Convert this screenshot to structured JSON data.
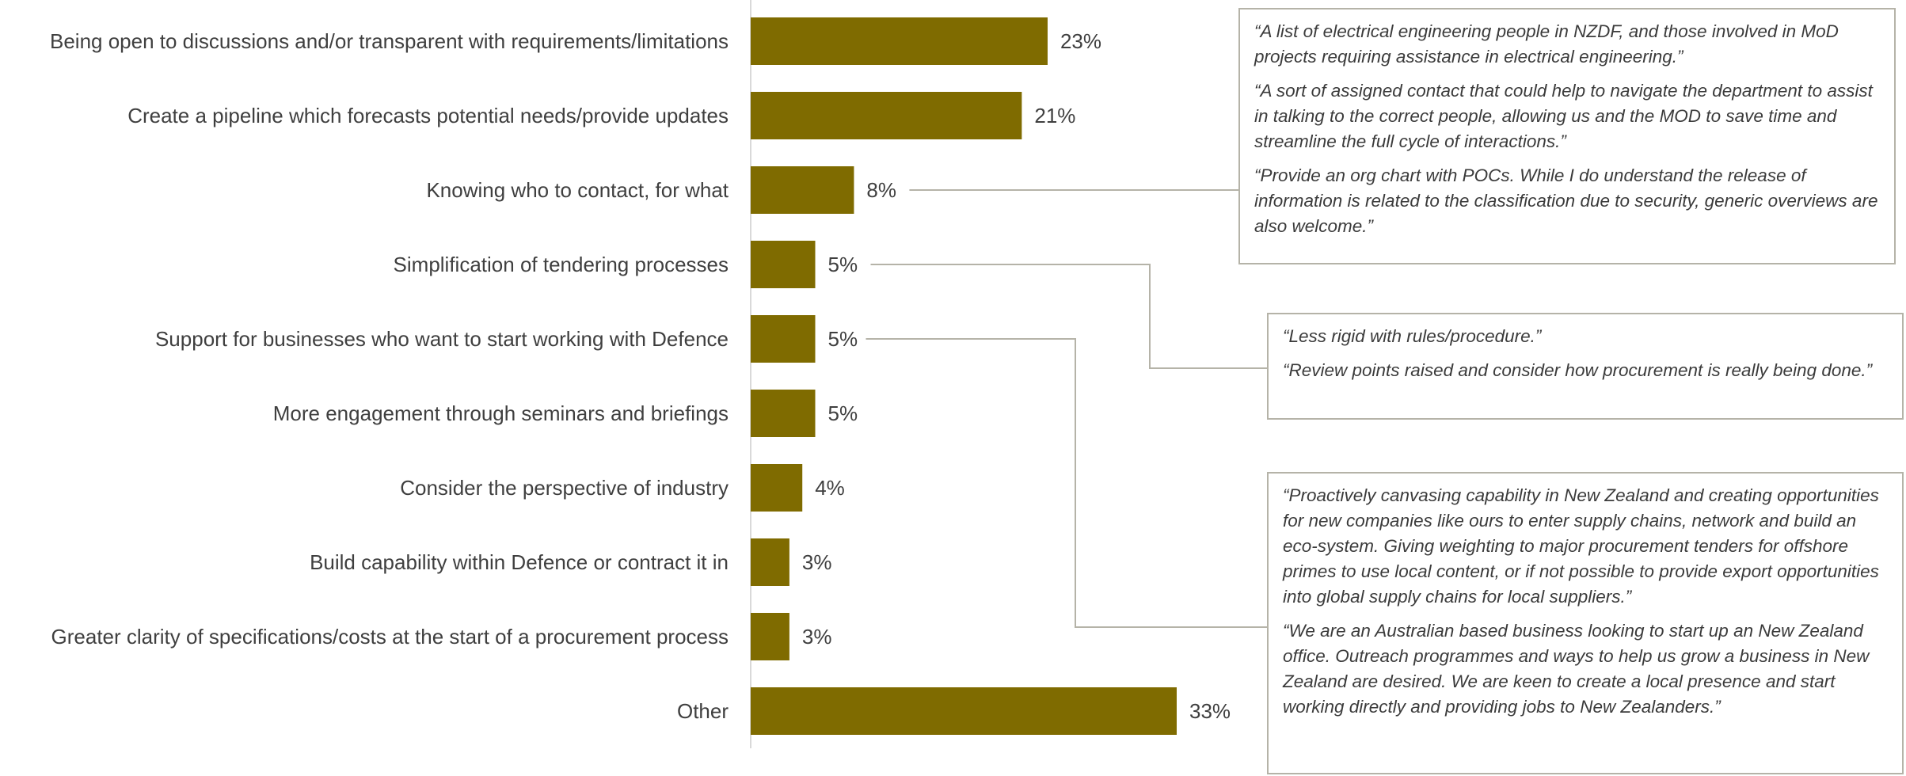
{
  "chart_data": {
    "type": "bar",
    "orientation": "horizontal",
    "categories": [
      "Being open to discussions and/or transparent with requirements/limitations",
      "Create a pipeline which forecasts potential needs/provide updates",
      "Knowing who to contact, for what",
      "Simplification of tendering processes",
      "Support for businesses who want to start working with Defence",
      "More engagement through seminars and briefings",
      "Consider the perspective of industry",
      "Build capability within Defence or contract it in",
      "Greater clarity of specifications/costs at the start of a procurement process",
      "Other"
    ],
    "values": [
      23,
      21,
      8,
      5,
      5,
      5,
      4,
      3,
      3,
      33
    ],
    "value_labels": [
      "23%",
      "21%",
      "8%",
      "5%",
      "5%",
      "5%",
      "4%",
      "3%",
      "3%",
      "33%"
    ],
    "bar_color": "#7f6b00",
    "axis_color": "#d9d9d9",
    "xlim": [
      0,
      33
    ],
    "title": "",
    "xlabel": "",
    "ylabel": "",
    "grid": false,
    "annotations": [
      {
        "target_category_index": 2,
        "quotes": [
          "“A list of electrical engineering people in NZDF, and those involved in MoD projects requiring assistance in electrical engineering.”",
          "“A sort of assigned contact that could help to navigate the department to assist in talking to the correct people, allowing us and the MOD to save time and streamline the full cycle of interactions.”",
          "“Provide an org chart with POCs.  While I do understand the release of information is related to the classification due to security, generic overviews are also welcome.”"
        ]
      },
      {
        "target_category_index": 3,
        "quotes": [
          "“Less rigid with rules/procedure.”",
          "“Review points raised and consider how procurement is really being done.”"
        ]
      },
      {
        "target_category_index": 4,
        "quotes": [
          "“Proactively canvasing capability in New Zealand and creating opportunities for new companies like ours to enter supply chains, network and build an eco-system.  Giving weighting to major procurement tenders for offshore primes to use local content, or if not possible to provide export opportunities into global supply chains for local suppliers.”",
          "“We are an Australian based business looking to start up an New Zealand office.  Outreach programmes and ways to help us grow a business in New Zealand are desired.  We are keen to create a local presence and start working directly and providing jobs to New Zealanders.”"
        ]
      }
    ],
    "connector_color": "#b5b3a8"
  }
}
